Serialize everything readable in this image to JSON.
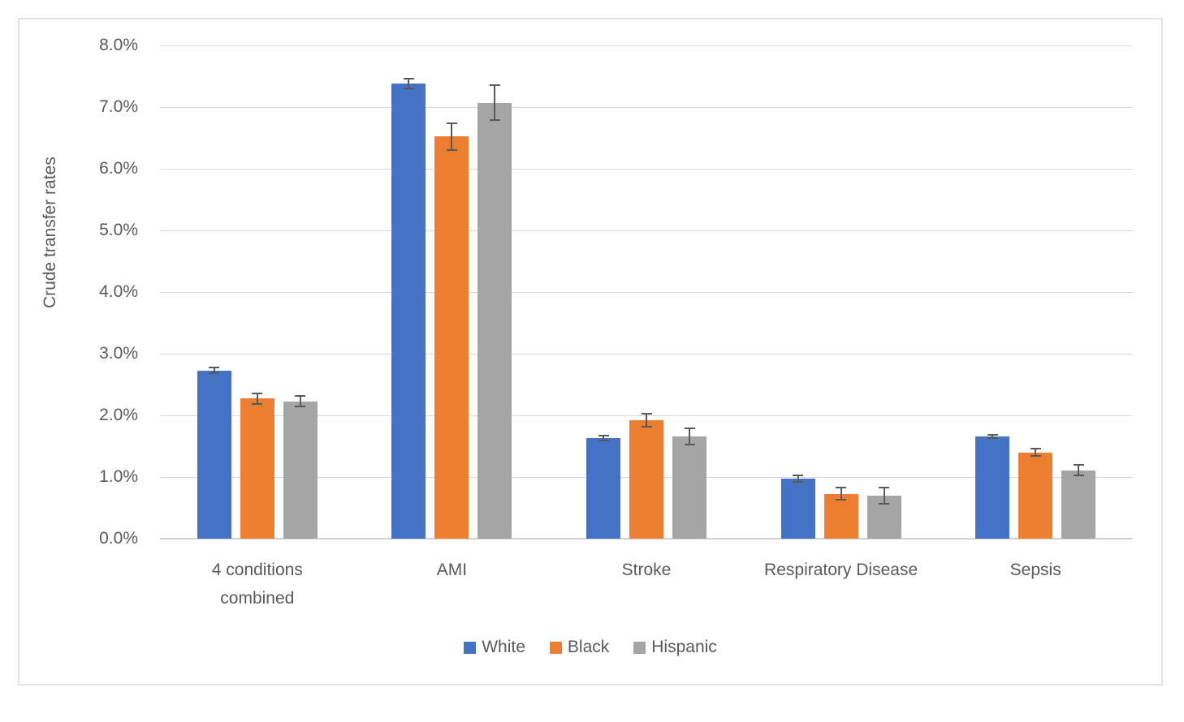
{
  "chart_data": {
    "type": "bar",
    "title": "",
    "xlabel": "",
    "ylabel": "Crude transfer rates",
    "value_unit": "%",
    "ylim": [
      0,
      8
    ],
    "ytick_step": 1,
    "yticks": [
      "0.0%",
      "1.0%",
      "2.0%",
      "3.0%",
      "4.0%",
      "5.0%",
      "6.0%",
      "7.0%",
      "8.0%"
    ],
    "categories": [
      "4 conditions\ncombined",
      "AMI",
      "Stroke",
      "Respiratory Disease",
      "Sepsis"
    ],
    "series": [
      {
        "name": "White",
        "color": "#4472C4",
        "values": [
          2.73,
          7.38,
          1.63,
          0.97,
          1.66
        ],
        "errors": [
          0.04,
          0.08,
          0.04,
          0.05,
          0.03
        ]
      },
      {
        "name": "Black",
        "color": "#ED7D31",
        "values": [
          2.27,
          6.52,
          1.92,
          0.73,
          1.4
        ],
        "errors": [
          0.08,
          0.22,
          0.1,
          0.1,
          0.06
        ]
      },
      {
        "name": "Hispanic",
        "color": "#A5A5A5",
        "values": [
          2.23,
          7.07,
          1.66,
          0.7,
          1.11
        ],
        "errors": [
          0.09,
          0.28,
          0.13,
          0.13,
          0.09
        ]
      }
    ],
    "error_bars": true,
    "grid": true,
    "legend_position": "bottom",
    "colors": {
      "gridline": "#D9D9D9",
      "axis_line": "#D0D0D0",
      "text": "#595959",
      "error_bar": "#595959",
      "frame_border": "#E2E2E2",
      "background": "#FFFFFF"
    }
  }
}
